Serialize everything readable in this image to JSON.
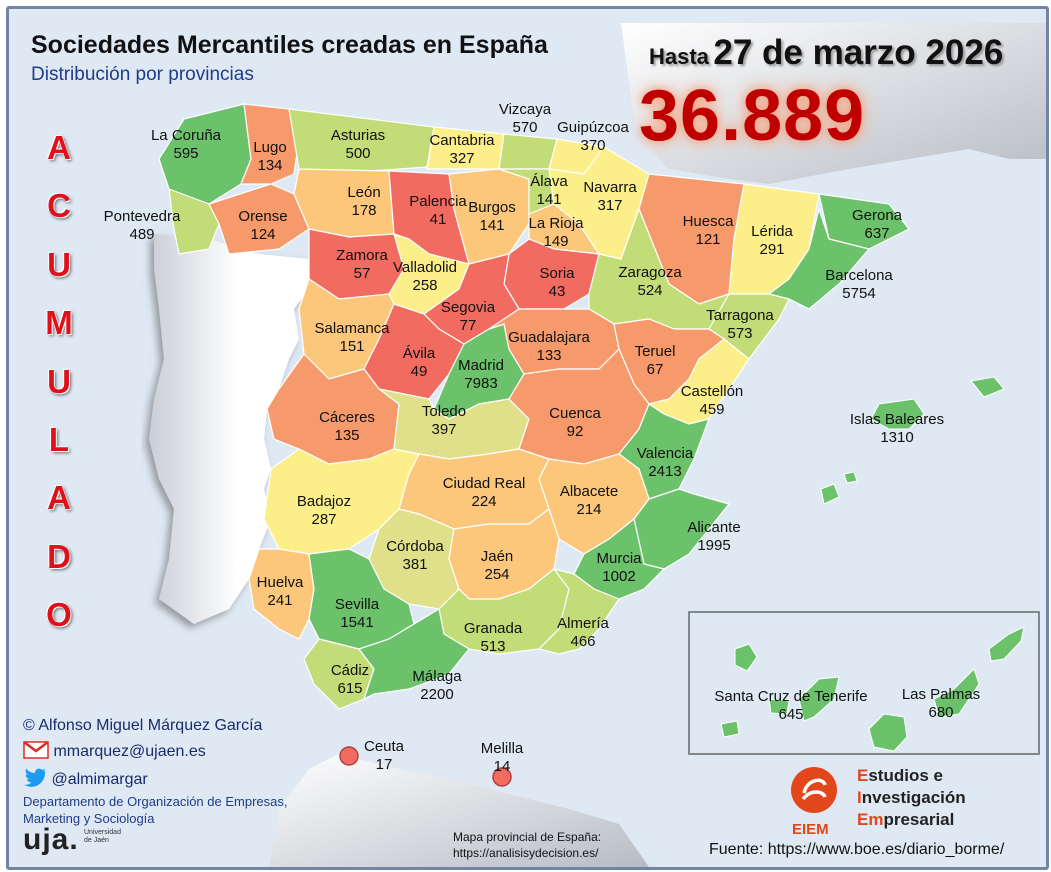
{
  "title": "Sociedades Mercantiles creadas en España",
  "subtitle": "Distribución por provincias",
  "date_prefix": "Hasta",
  "date": "27 de marzo 2026",
  "total": "36.889",
  "vertical_word": [
    "A",
    "C",
    "U",
    "M",
    "U",
    "L",
    "A",
    "D",
    "O"
  ],
  "colors": {
    "green": "#6cc26b",
    "lightgreen": "#c2dc77",
    "yellow": "#fcef89",
    "light_orange": "#fcc77b",
    "orange": "#f79a6b",
    "red": "#f26b61",
    "sea": "#dfe9f4",
    "portugal": "#ffffff",
    "title_red": "#c00000"
  },
  "provinces": [
    {
      "name": "La Coruña",
      "value": 595
    },
    {
      "name": "Lugo",
      "value": 134
    },
    {
      "name": "Asturias",
      "value": 500
    },
    {
      "name": "Cantabria",
      "value": 327
    },
    {
      "name": "Vizcaya",
      "value": 570
    },
    {
      "name": "Guipúzcoa",
      "value": 370
    },
    {
      "name": "Pontevedra",
      "value": 489
    },
    {
      "name": "Orense",
      "value": 124
    },
    {
      "name": "León",
      "value": 178
    },
    {
      "name": "Palencia",
      "value": 41
    },
    {
      "name": "Burgos",
      "value": 141
    },
    {
      "name": "Álava",
      "value": 141
    },
    {
      "name": "Navarra",
      "value": 317
    },
    {
      "name": "La Rioja",
      "value": 149
    },
    {
      "name": "Huesca",
      "value": 121
    },
    {
      "name": "Lérida",
      "value": 291
    },
    {
      "name": "Gerona",
      "value": 637
    },
    {
      "name": "Barcelona",
      "value": 5754
    },
    {
      "name": "Zamora",
      "value": 57
    },
    {
      "name": "Valladolid",
      "value": 258
    },
    {
      "name": "Soria",
      "value": 43
    },
    {
      "name": "Zaragoza",
      "value": 524
    },
    {
      "name": "Tarragona",
      "value": 573
    },
    {
      "name": "Segovia",
      "value": 77
    },
    {
      "name": "Salamanca",
      "value": 151
    },
    {
      "name": "Ávila",
      "value": 49
    },
    {
      "name": "Madrid",
      "value": 7983
    },
    {
      "name": "Guadalajara",
      "value": 133
    },
    {
      "name": "Teruel",
      "value": 67
    },
    {
      "name": "Castellón",
      "value": 459
    },
    {
      "name": "Cáceres",
      "value": 135
    },
    {
      "name": "Toledo",
      "value": 397
    },
    {
      "name": "Cuenca",
      "value": 92
    },
    {
      "name": "Valencia",
      "value": 2413
    },
    {
      "name": "Islas Baleares",
      "value": 1310
    },
    {
      "name": "Badajoz",
      "value": 287
    },
    {
      "name": "Ciudad Real",
      "value": 224
    },
    {
      "name": "Albacete",
      "value": 214
    },
    {
      "name": "Alicante",
      "value": 1995
    },
    {
      "name": "Córdoba",
      "value": 381
    },
    {
      "name": "Jaén",
      "value": 254
    },
    {
      "name": "Murcia",
      "value": 1002
    },
    {
      "name": "Huelva",
      "value": 241
    },
    {
      "name": "Sevilla",
      "value": 1541
    },
    {
      "name": "Granada",
      "value": 513
    },
    {
      "name": "Almería",
      "value": 466
    },
    {
      "name": "Cádiz",
      "value": 615
    },
    {
      "name": "Málaga",
      "value": 2200
    },
    {
      "name": "Ceuta",
      "value": 17
    },
    {
      "name": "Melilla",
      "value": 14
    },
    {
      "name": "Santa Cruz de Tenerife",
      "value": 645
    },
    {
      "name": "Las Palmas",
      "value": 680
    }
  ],
  "credits": {
    "author": "© Alfonso Miguel Márquez García",
    "email": "mmarquez@ujaen.es",
    "twitter": "@almimargar",
    "department_line1": "Departamento de Organización de Empresas,",
    "department_line2": "Marketing y Sociología",
    "university": "uja.",
    "university_small_1": "Universidad",
    "university_small_2": "de Jaén"
  },
  "map_source_line1": "Mapa provincial de España:",
  "map_source_line2": "https://analisisydecision.es/",
  "source": "Fuente: https://www.boe.es/diario_borme/",
  "eiem": {
    "acronym": "EIEM",
    "line1_initial": "E",
    "line1_rest": "studios e",
    "line2_initial": "I",
    "line2_rest": "nvestigación",
    "line3_initial": "Em",
    "line3_rest": "presarial"
  }
}
